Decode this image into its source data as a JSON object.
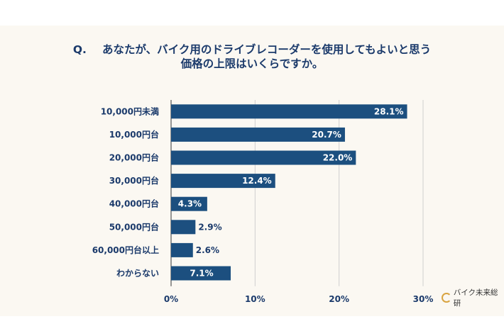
{
  "chart_data": {
    "type": "bar",
    "orientation": "horizontal",
    "title_prefix": "Q.",
    "title_line1": "あなたが、バイク用のドライブレコーダーを使用してもよいと思う",
    "title_line2": "価格の上限はいくらですか。",
    "categories": [
      "10,000円未満",
      "10,000円台",
      "20,000円台",
      "30,000円台",
      "40,000円台",
      "50,000円台",
      "60,000円台以上",
      "わからない"
    ],
    "values": [
      28.1,
      20.7,
      22.0,
      12.4,
      4.3,
      2.9,
      2.6,
      7.1
    ],
    "value_labels": [
      "28.1%",
      "20.7%",
      "22.0%",
      "12.4%",
      "4.3%",
      "2.9%",
      "2.6%",
      "7.1%"
    ],
    "xlim": [
      0,
      30
    ],
    "xticks": [
      0,
      10,
      20,
      30
    ],
    "xtick_labels": [
      "0%",
      "10%",
      "20%",
      "30%"
    ],
    "grid": true,
    "bar_color": "#1c4f7f"
  },
  "logo": {
    "text": "バイク未来総研"
  }
}
